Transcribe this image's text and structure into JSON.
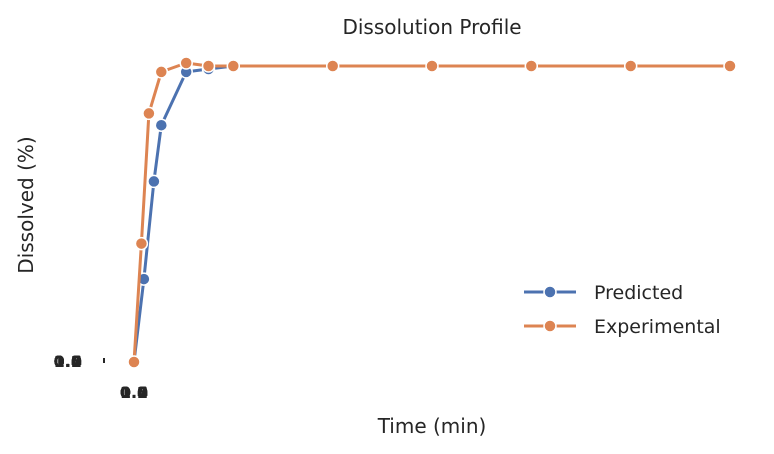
{
  "chart_data": {
    "type": "line",
    "title": "Dissolution Profile",
    "xlabel": "Time (min)",
    "ylabel": "Dissolved (%)",
    "xlim": [
      0,
      120
    ],
    "ylim": [
      0,
      100
    ],
    "grid": false,
    "legend": "lower-right",
    "x_ticks": [
      "0.0",
      "0.2",
      "0.4",
      "0.6",
      "0.8",
      "1.0"
    ],
    "y_ticks": [
      "0.0",
      "0.2",
      "0.4",
      "0.6",
      "0.8",
      "1.0"
    ],
    "series": [
      {
        "name": "Predicted",
        "color": "#4c72b0",
        "points": [
          [
            0,
            0
          ],
          [
            2,
            28
          ],
          [
            4,
            61
          ],
          [
            5.5,
            80
          ],
          [
            10.5,
            98
          ],
          [
            15,
            99
          ],
          [
            20,
            100
          ]
        ]
      },
      {
        "name": "Experimental",
        "color": "#dd8452",
        "points": [
          [
            0,
            0
          ],
          [
            1.5,
            40
          ],
          [
            3,
            84
          ],
          [
            5.5,
            98
          ],
          [
            10.5,
            101
          ],
          [
            15,
            100
          ],
          [
            20,
            100
          ],
          [
            40,
            100
          ],
          [
            60,
            100
          ],
          [
            80,
            100
          ],
          [
            100,
            100
          ],
          [
            120,
            100
          ]
        ]
      }
    ]
  }
}
